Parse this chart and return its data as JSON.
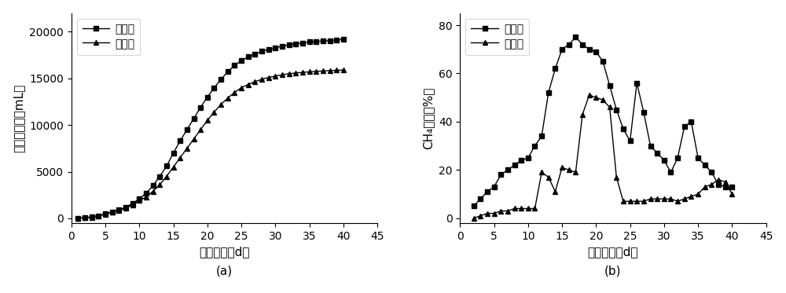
{
  "chart_a": {
    "title": "(a)",
    "xlabel": "发酵天数（d）",
    "ylabel": "累积产气量（mL）",
    "xlim": [
      0,
      45
    ],
    "ylim": [
      -500,
      22000
    ],
    "yticks": [
      0,
      5000,
      10000,
      15000,
      20000
    ],
    "xticks": [
      0,
      5,
      10,
      15,
      20,
      25,
      30,
      35,
      40,
      45
    ],
    "legend_labels": [
      "实施组",
      "对照组"
    ],
    "series1_x": [
      1,
      2,
      3,
      4,
      5,
      6,
      7,
      8,
      9,
      10,
      11,
      12,
      13,
      14,
      15,
      16,
      17,
      18,
      19,
      20,
      21,
      22,
      23,
      24,
      25,
      26,
      27,
      28,
      29,
      30,
      31,
      32,
      33,
      34,
      35,
      36,
      37,
      38,
      39,
      40
    ],
    "series1_y": [
      30,
      80,
      150,
      280,
      500,
      700,
      900,
      1200,
      1600,
      2100,
      2700,
      3500,
      4500,
      5600,
      7000,
      8300,
      9500,
      10700,
      11900,
      13000,
      14000,
      14900,
      15700,
      16400,
      16900,
      17300,
      17600,
      17900,
      18100,
      18300,
      18450,
      18600,
      18700,
      18800,
      18900,
      18950,
      19000,
      19050,
      19100,
      19200
    ],
    "series2_x": [
      1,
      2,
      3,
      4,
      5,
      6,
      7,
      8,
      9,
      10,
      11,
      12,
      13,
      14,
      15,
      16,
      17,
      18,
      19,
      20,
      21,
      22,
      23,
      24,
      25,
      26,
      27,
      28,
      29,
      30,
      31,
      32,
      33,
      34,
      35,
      36,
      37,
      38,
      39,
      40
    ],
    "series2_y": [
      20,
      60,
      120,
      250,
      450,
      650,
      850,
      1100,
      1450,
      1900,
      2300,
      2900,
      3600,
      4500,
      5500,
      6500,
      7500,
      8500,
      9500,
      10500,
      11400,
      12200,
      12900,
      13500,
      14000,
      14350,
      14650,
      14900,
      15100,
      15250,
      15400,
      15500,
      15580,
      15650,
      15700,
      15750,
      15800,
      15830,
      15870,
      15900
    ]
  },
  "chart_b": {
    "title": "(b)",
    "xlabel": "发酵天数（d）",
    "ylabel": "CH₄含量（%）",
    "xlim": [
      0,
      45
    ],
    "ylim": [
      -2,
      85
    ],
    "yticks": [
      0,
      20,
      40,
      60,
      80
    ],
    "xticks": [
      0,
      5,
      10,
      15,
      20,
      25,
      30,
      35,
      40,
      45
    ],
    "legend_labels": [
      "实施组",
      "对照组"
    ],
    "series1_x": [
      2,
      3,
      4,
      5,
      6,
      7,
      8,
      9,
      10,
      11,
      12,
      13,
      14,
      15,
      16,
      17,
      18,
      19,
      20,
      21,
      22,
      23,
      24,
      25,
      26,
      27,
      28,
      29,
      30,
      31,
      32,
      33,
      34,
      35,
      36,
      37,
      38,
      39,
      40
    ],
    "series1_y": [
      5,
      8,
      11,
      13,
      18,
      20,
      22,
      24,
      25,
      30,
      34,
      52,
      62,
      70,
      72,
      75,
      72,
      70,
      69,
      65,
      55,
      45,
      37,
      32,
      56,
      44,
      30,
      27,
      24,
      19,
      25,
      38,
      40,
      25,
      22,
      19,
      14,
      13,
      13
    ],
    "series2_x": [
      2,
      3,
      4,
      5,
      6,
      7,
      8,
      9,
      10,
      11,
      12,
      13,
      14,
      15,
      16,
      17,
      18,
      19,
      20,
      21,
      22,
      23,
      24,
      25,
      26,
      27,
      28,
      29,
      30,
      31,
      32,
      33,
      34,
      35,
      36,
      37,
      38,
      39,
      40
    ],
    "series2_y": [
      0,
      1,
      2,
      2,
      3,
      3,
      4,
      4,
      4,
      4,
      19,
      17,
      11,
      21,
      20,
      19,
      43,
      51,
      50,
      49,
      46,
      17,
      7,
      7,
      7,
      7,
      8,
      8,
      8,
      8,
      7,
      8,
      9,
      10,
      13,
      14,
      16,
      15,
      10
    ]
  },
  "line_color": "#000000",
  "marker_square": "s",
  "marker_triangle": "^",
  "marker_size": 4.5,
  "linewidth": 1.0,
  "background_color": "#ffffff",
  "label_fontsize": 11,
  "tick_fontsize": 10,
  "legend_fontsize": 10,
  "subtitle_fontsize": 11
}
